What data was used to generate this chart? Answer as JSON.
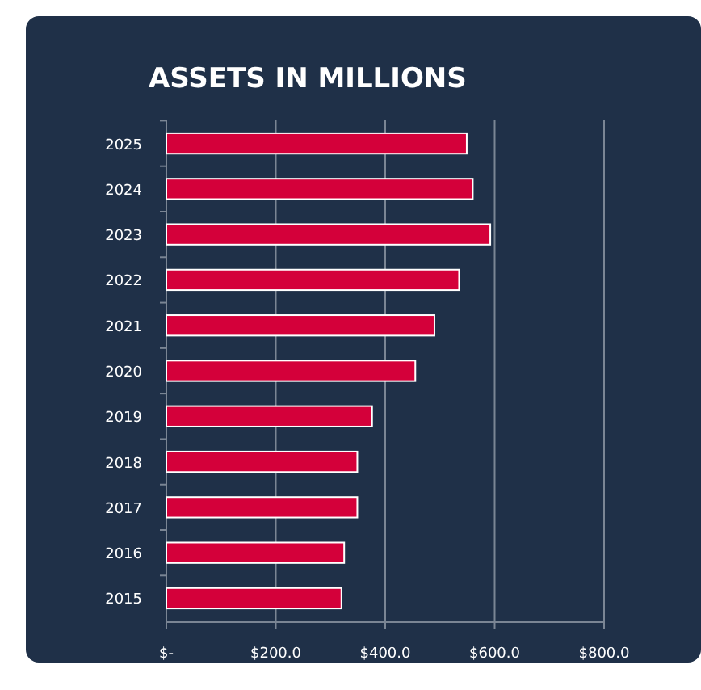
{
  "chart_data": {
    "type": "bar",
    "orientation": "horizontal",
    "title": "ASSETS IN MILLIONS",
    "categories": [
      "2025",
      "2024",
      "2023",
      "2022",
      "2021",
      "2020",
      "2019",
      "2018",
      "2017",
      "2016",
      "2015"
    ],
    "values": [
      549,
      560,
      592,
      535,
      490,
      455,
      376,
      349,
      349,
      325,
      320
    ],
    "color": "#d4003a",
    "xlim": [
      0,
      800
    ],
    "xticks": [
      {
        "value": 0,
        "label": "$-"
      },
      {
        "value": 200,
        "label": "$200.0"
      },
      {
        "value": 400,
        "label": "$400.0"
      },
      {
        "value": 600,
        "label": "$600.0"
      },
      {
        "value": 800,
        "label": "$800.0"
      }
    ],
    "grid": "x"
  }
}
